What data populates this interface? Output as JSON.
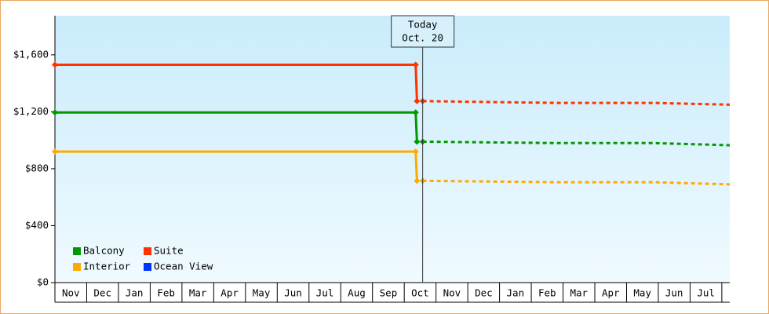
{
  "chart_data": {
    "type": "line",
    "xlim": [
      0,
      21.25
    ],
    "ylim": [
      0,
      1875
    ],
    "yticks": [
      {
        "value": 0,
        "label": "$0"
      },
      {
        "value": 400,
        "label": "$400"
      },
      {
        "value": 800,
        "label": "$800"
      },
      {
        "value": 1200,
        "label": "$1,200"
      },
      {
        "value": 1600,
        "label": "$1,600"
      }
    ],
    "categories": [
      "Nov",
      "Dec",
      "Jan",
      "Feb",
      "Mar",
      "Apr",
      "May",
      "Jun",
      "Jul",
      "Aug",
      "Sep",
      "Oct",
      "Nov",
      "Dec",
      "Jan",
      "Feb",
      "Mar",
      "Apr",
      "May",
      "Jun",
      "Jul"
    ],
    "today": {
      "x": 11.58,
      "label": [
        "Today",
        "Oct. 20"
      ]
    },
    "series": [
      {
        "name": "Balcony",
        "color": "#009900",
        "x": [
          0,
          11.36,
          11.4
        ],
        "values": [
          1195,
          1195,
          990
        ],
        "forecast_x": [
          11.58,
          15.9,
          18.9,
          21.25
        ],
        "forecast_values": [
          990,
          980,
          980,
          965
        ]
      },
      {
        "name": "Suite",
        "color": "#ff3300",
        "x": [
          0,
          11.36,
          11.4
        ],
        "values": [
          1530,
          1530,
          1275
        ],
        "forecast_x": [
          11.58,
          15.9,
          18.9,
          21.25
        ],
        "forecast_values": [
          1275,
          1262,
          1262,
          1250
        ]
      },
      {
        "name": "Interior",
        "color": "#ffaa00",
        "x": [
          0,
          11.36,
          11.4
        ],
        "values": [
          920,
          920,
          715
        ],
        "forecast_x": [
          11.58,
          15.9,
          18.9,
          21.25
        ],
        "forecast_values": [
          715,
          705,
          705,
          690
        ]
      },
      {
        "name": "Ocean View",
        "color": "#0033ff",
        "x": [],
        "values": [],
        "forecast_x": [],
        "forecast_values": []
      }
    ]
  }
}
